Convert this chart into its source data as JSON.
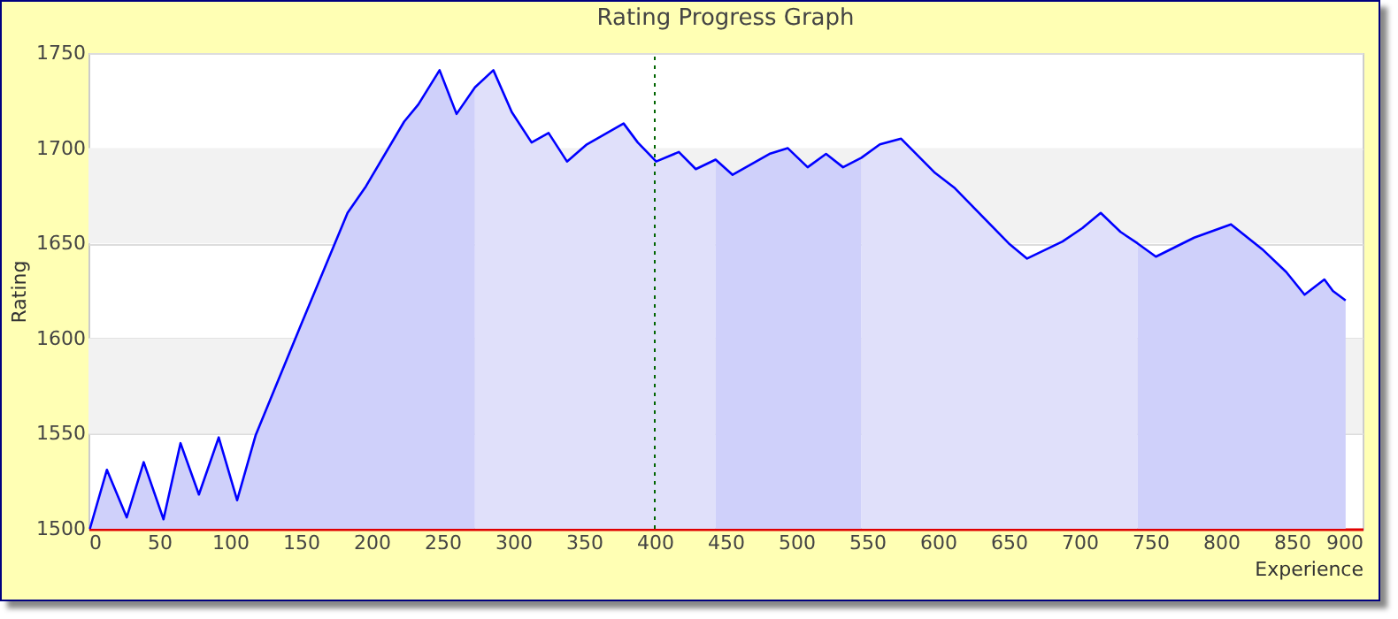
{
  "chart_data": {
    "type": "area",
    "title": "Rating Progress Graph",
    "xlabel": "Experience",
    "ylabel": "Rating",
    "xlim": [
      0,
      900
    ],
    "ylim": [
      1500,
      1750
    ],
    "xticks": [
      0,
      50,
      100,
      150,
      200,
      250,
      300,
      350,
      400,
      450,
      500,
      550,
      600,
      650,
      700,
      750,
      800,
      850,
      900
    ],
    "yticks": [
      1500,
      1550,
      1600,
      1650,
      1700,
      1750
    ],
    "grid": "y",
    "marker": "none",
    "bands": [
      {
        "axis": "y",
        "from": 1550,
        "to": 1600,
        "color": "#f2f2f2"
      },
      {
        "axis": "y",
        "from": 1650,
        "to": 1700,
        "color": "#f2f2f2"
      }
    ],
    "ref_lines": [
      {
        "axis": "x",
        "value": 400,
        "color": "#006400",
        "line_style": "dotted"
      }
    ],
    "series": [
      {
        "type": "area",
        "color": "#cfd0fa",
        "x": [
          1,
          13,
          27,
          39,
          53,
          65,
          78,
          92,
          105,
          118,
          150,
          183,
          196,
          223,
          233,
          248,
          260,
          273
        ],
        "values": [
          1500,
          1531,
          1506,
          1535,
          1505,
          1545,
          1518,
          1548,
          1515,
          1549,
          1607,
          1666,
          1680,
          1714,
          1723,
          1741,
          1718,
          1732
        ]
      },
      {
        "type": "area",
        "color": "#e0e0fa",
        "x": [
          273,
          286,
          299,
          313,
          325,
          338,
          352,
          378,
          388,
          401,
          417,
          429,
          443
        ],
        "values": [
          1732,
          1741,
          1719,
          1703,
          1708,
          1693,
          1702,
          1713,
          1703,
          1693,
          1698,
          1689,
          1694
        ]
      },
      {
        "type": "area",
        "color": "#cfd0fa",
        "x": [
          443,
          455,
          481,
          494,
          508,
          521,
          533,
          546
        ],
        "values": [
          1694,
          1686,
          1697,
          1700,
          1690,
          1697,
          1690,
          1695
        ]
      },
      {
        "type": "area",
        "color": "#e0e0fa",
        "x": [
          546,
          559,
          574,
          598,
          612,
          650,
          663,
          688,
          702,
          715,
          729,
          741
        ],
        "values": [
          1695,
          1702,
          1705,
          1687,
          1679,
          1650,
          1642,
          1651,
          1658,
          1666,
          1656,
          1650
        ]
      },
      {
        "type": "area",
        "color": "#cfd0fa",
        "x": [
          741,
          754,
          781,
          807,
          829,
          846,
          859,
          873,
          879,
          888
        ],
        "values": [
          1650,
          1643,
          1653,
          1660,
          1647,
          1635,
          1623,
          1631,
          1625,
          1620
        ]
      },
      {
        "type": "line",
        "color": "#0000ff",
        "x": [
          1,
          13,
          27,
          39,
          53,
          65,
          78,
          92,
          105,
          118,
          150,
          183,
          196,
          223,
          233,
          248,
          260,
          273,
          286,
          299,
          313,
          325,
          338,
          352,
          378,
          388,
          401,
          417,
          429,
          443,
          455,
          481,
          494,
          508,
          521,
          533,
          546,
          559,
          574,
          598,
          612,
          650,
          663,
          688,
          702,
          715,
          729,
          741,
          754,
          781,
          807,
          829,
          846,
          859,
          873,
          879,
          888
        ],
        "values": [
          1500,
          1531,
          1506,
          1535,
          1505,
          1545,
          1518,
          1548,
          1515,
          1549,
          1607,
          1666,
          1680,
          1714,
          1723,
          1741,
          1718,
          1732,
          1741,
          1719,
          1703,
          1708,
          1693,
          1702,
          1713,
          1703,
          1693,
          1698,
          1689,
          1694,
          1686,
          1697,
          1700,
          1690,
          1697,
          1690,
          1695,
          1702,
          1705,
          1687,
          1679,
          1650,
          1642,
          1651,
          1658,
          1666,
          1656,
          1650,
          1643,
          1653,
          1660,
          1647,
          1635,
          1623,
          1631,
          1625,
          1620
        ]
      }
    ]
  }
}
